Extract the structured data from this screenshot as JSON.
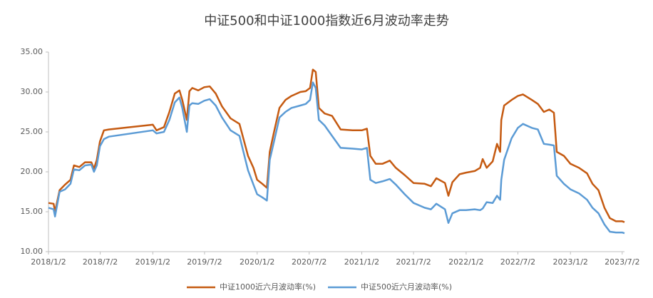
{
  "chart_data": {
    "type": "line",
    "title": "中证500和中证1000指数近6月波动率走势",
    "x": [
      "2018-01-02",
      "2018-01-20",
      "2018-01-25",
      "2018-02-10",
      "2018-03-01",
      "2018-03-20",
      "2018-04-01",
      "2018-04-20",
      "2018-05-10",
      "2018-06-01",
      "2018-06-10",
      "2018-06-20",
      "2018-07-01",
      "2018-07-15",
      "2018-08-01",
      "2019-01-02",
      "2019-01-15",
      "2019-02-10",
      "2019-03-01",
      "2019-03-20",
      "2019-04-05",
      "2019-04-15",
      "2019-05-01",
      "2019-05-10",
      "2019-05-20",
      "2019-06-10",
      "2019-07-01",
      "2019-07-20",
      "2019-08-10",
      "2019-09-01",
      "2019-10-01",
      "2019-11-01",
      "2019-12-01",
      "2019-12-20",
      "2020-01-02",
      "2020-01-20",
      "2020-02-05",
      "2020-02-15",
      "2020-03-01",
      "2020-03-20",
      "2020-04-10",
      "2020-05-01",
      "2020-06-01",
      "2020-06-20",
      "2020-07-05",
      "2020-07-15",
      "2020-07-25",
      "2020-08-05",
      "2020-08-25",
      "2020-09-20",
      "2020-10-20",
      "2020-12-01",
      "2021-01-02",
      "2021-01-20",
      "2021-02-01",
      "2021-02-20",
      "2021-03-15",
      "2021-04-10",
      "2021-05-01",
      "2021-06-01",
      "2021-07-02",
      "2021-08-10",
      "2021-09-01",
      "2021-09-20",
      "2021-10-20",
      "2021-11-01",
      "2021-11-15",
      "2021-12-10",
      "2022-01-02",
      "2022-02-01",
      "2022-02-20",
      "2022-03-01",
      "2022-03-15",
      "2022-04-05",
      "2022-04-20",
      "2022-05-01",
      "2022-05-05",
      "2022-05-15",
      "2022-06-10",
      "2022-07-02",
      "2022-07-20",
      "2022-08-20",
      "2022-09-10",
      "2022-10-01",
      "2022-10-20",
      "2022-11-05",
      "2022-11-15",
      "2022-12-10",
      "2023-01-02",
      "2023-02-01",
      "2023-03-01",
      "2023-03-20",
      "2023-04-10",
      "2023-05-01",
      "2023-05-20",
      "2023-06-10",
      "2023-07-02",
      "2023-07-10"
    ],
    "series": [
      {
        "name": "中证1000近六月波动率(%)",
        "color": "#c55a11",
        "values": [
          16.1,
          16.0,
          15.0,
          17.7,
          18.4,
          19.0,
          20.8,
          20.6,
          21.2,
          21.2,
          20.4,
          21.5,
          23.8,
          25.2,
          25.3,
          25.9,
          25.2,
          25.6,
          27.5,
          29.8,
          30.2,
          29.0,
          26.5,
          30.1,
          30.5,
          30.2,
          30.6,
          30.7,
          29.8,
          28.2,
          26.7,
          26.0,
          22.0,
          20.5,
          19.0,
          18.5,
          18.0,
          22.5,
          25.0,
          28.0,
          29.0,
          29.5,
          30.0,
          30.1,
          30.5,
          32.8,
          32.5,
          28.0,
          27.3,
          27.0,
          25.3,
          25.2,
          25.2,
          25.4,
          22.0,
          21.0,
          21.0,
          21.4,
          20.5,
          19.6,
          18.6,
          18.5,
          18.2,
          19.2,
          18.6,
          17.0,
          18.7,
          19.7,
          19.9,
          20.1,
          20.5,
          21.6,
          20.5,
          21.3,
          23.5,
          22.5,
          26.5,
          28.3,
          29.0,
          29.5,
          29.7,
          29.0,
          28.5,
          27.5,
          27.8,
          27.4,
          22.5,
          22.0,
          21.0,
          20.5,
          19.8,
          18.5,
          17.7,
          15.5,
          14.2,
          13.8,
          13.8,
          13.7
        ]
      },
      {
        "name": "中证500近六月波动率(%)",
        "color": "#5b9bd5",
        "values": [
          15.5,
          15.3,
          14.4,
          17.5,
          17.8,
          18.5,
          20.3,
          20.2,
          20.8,
          20.9,
          20.0,
          20.8,
          23.2,
          24.1,
          24.4,
          25.2,
          24.8,
          25.0,
          26.5,
          28.7,
          29.3,
          28.0,
          25.0,
          28.3,
          28.6,
          28.5,
          28.9,
          29.1,
          28.3,
          26.8,
          25.2,
          24.5,
          20.2,
          18.4,
          17.2,
          16.8,
          16.4,
          21.5,
          23.8,
          26.8,
          27.5,
          28.0,
          28.3,
          28.5,
          29.0,
          31.2,
          30.5,
          26.5,
          25.8,
          24.5,
          23.0,
          22.9,
          22.8,
          23.0,
          19.0,
          18.6,
          18.8,
          19.1,
          18.4,
          17.2,
          16.1,
          15.5,
          15.3,
          16.0,
          15.3,
          13.6,
          14.8,
          15.2,
          15.2,
          15.3,
          15.2,
          15.4,
          16.2,
          16.1,
          17.0,
          16.5,
          19.0,
          21.5,
          24.2,
          25.5,
          26.0,
          25.5,
          25.3,
          23.5,
          23.4,
          23.3,
          19.5,
          18.5,
          17.8,
          17.3,
          16.5,
          15.5,
          14.8,
          13.4,
          12.5,
          12.4,
          12.4,
          12.3
        ]
      }
    ],
    "xlim": [
      "2018-01-02",
      "2023-07-10"
    ],
    "xticks": [
      {
        "value": "2018-01-02",
        "label": "2018/1/2"
      },
      {
        "value": "2018-07-02",
        "label": "2018/7/2"
      },
      {
        "value": "2019-01-02",
        "label": "2019/1/2"
      },
      {
        "value": "2019-07-02",
        "label": "2019/7/2"
      },
      {
        "value": "2020-01-02",
        "label": "2020/1/2"
      },
      {
        "value": "2020-07-02",
        "label": "2020/7/2"
      },
      {
        "value": "2021-01-02",
        "label": "2021/1/2"
      },
      {
        "value": "2021-07-02",
        "label": "2021/7/2"
      },
      {
        "value": "2022-01-02",
        "label": "2022/1/2"
      },
      {
        "value": "2022-07-02",
        "label": "2022/7/2"
      },
      {
        "value": "2023-01-02",
        "label": "2023/1/2"
      },
      {
        "value": "2023-07-02",
        "label": "2023/7/2"
      }
    ],
    "ylim": [
      10,
      35
    ],
    "yticks": [
      {
        "value": 10,
        "label": "10.00"
      },
      {
        "value": 15,
        "label": "15.00"
      },
      {
        "value": 20,
        "label": "20.00"
      },
      {
        "value": 25,
        "label": "25.00"
      },
      {
        "value": 30,
        "label": "30.00"
      },
      {
        "value": 35,
        "label": "35.00"
      }
    ],
    "legend": "bottom"
  }
}
